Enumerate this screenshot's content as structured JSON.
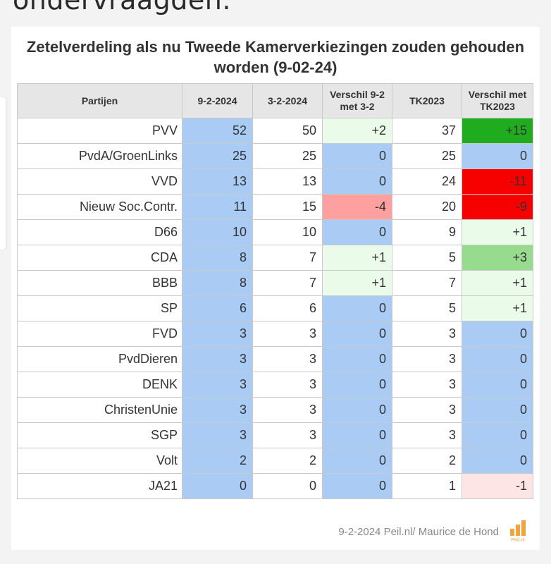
{
  "page": {
    "top_text": "ondervraagden.",
    "footer": "9-2-2024 Peil.nl/ Maurice de Hond",
    "logo_text": "Peil.nl"
  },
  "colors": {
    "blue": "#aaccf4",
    "white": "#ffffff",
    "light_green": "#eafbea",
    "mid_green": "#97dc8e",
    "dark_green": "#1fad1f",
    "red": "#f70000",
    "light_red": "#fea0a0",
    "pale_red": "#fde5e5"
  },
  "chart_data": {
    "type": "table",
    "title": "Zetelverdeling als nu Tweede Kamerverkiezingen zouden gehouden worden (9-02-24)",
    "columns": [
      "Partijen",
      "9-2-2024",
      "3-2-2024",
      "Verschil 9-2 met 3-2",
      "TK2023",
      "Verschil met TK2023"
    ],
    "rows": [
      {
        "party": "PVV",
        "v1": "52",
        "v2": "50",
        "d1": "+2",
        "tk": "37",
        "d2": "+15"
      },
      {
        "party": "PvdA/GroenLinks",
        "v1": "25",
        "v2": "25",
        "d1": "0",
        "tk": "25",
        "d2": "0"
      },
      {
        "party": "VVD",
        "v1": "13",
        "v2": "13",
        "d1": "0",
        "tk": "24",
        "d2": "-11"
      },
      {
        "party": "Nieuw Soc.Contr.",
        "v1": "11",
        "v2": "15",
        "d1": "-4",
        "tk": "20",
        "d2": "-9"
      },
      {
        "party": "D66",
        "v1": "10",
        "v2": "10",
        "d1": "0",
        "tk": "9",
        "d2": "+1"
      },
      {
        "party": "CDA",
        "v1": "8",
        "v2": "7",
        "d1": "+1",
        "tk": "5",
        "d2": "+3"
      },
      {
        "party": "BBB",
        "v1": "8",
        "v2": "7",
        "d1": "+1",
        "tk": "7",
        "d2": "+1"
      },
      {
        "party": "SP",
        "v1": "6",
        "v2": "6",
        "d1": "0",
        "tk": "5",
        "d2": "+1"
      },
      {
        "party": "FVD",
        "v1": "3",
        "v2": "3",
        "d1": "0",
        "tk": "3",
        "d2": "0"
      },
      {
        "party": "PvdDieren",
        "v1": "3",
        "v2": "3",
        "d1": "0",
        "tk": "3",
        "d2": "0"
      },
      {
        "party": "DENK",
        "v1": "3",
        "v2": "3",
        "d1": "0",
        "tk": "3",
        "d2": "0"
      },
      {
        "party": "ChristenUnie",
        "v1": "3",
        "v2": "3",
        "d1": "0",
        "tk": "3",
        "d2": "0"
      },
      {
        "party": "SGP",
        "v1": "3",
        "v2": "3",
        "d1": "0",
        "tk": "3",
        "d2": "0"
      },
      {
        "party": "Volt",
        "v1": "2",
        "v2": "2",
        "d1": "0",
        "tk": "2",
        "d2": "0"
      },
      {
        "party": "JA21",
        "v1": "0",
        "v2": "0",
        "d1": "0",
        "tk": "1",
        "d2": "-1"
      }
    ]
  }
}
